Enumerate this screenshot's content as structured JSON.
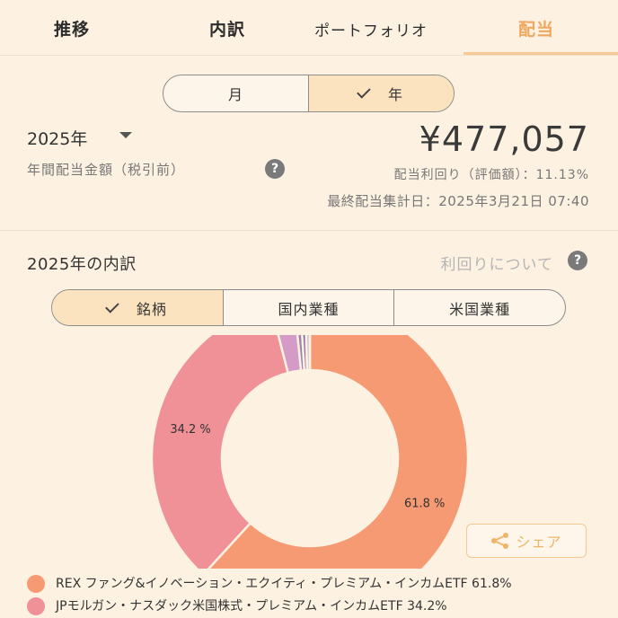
{
  "tabs": [
    {
      "label": "推移"
    },
    {
      "label": "内訳"
    },
    {
      "label": "ポートフォリオ"
    },
    {
      "label": "配当"
    }
  ],
  "period_toggle": {
    "month": "月",
    "year": "年",
    "selected": "year"
  },
  "year_select": "2025年",
  "annual_label": "年間配当金額（税引前）",
  "help_icon": "?",
  "amount": "¥477,057",
  "yield_text": "配当利回り（評価額）：11.13%",
  "last_updated": "最終配当集計日：2025年3月21日 07:40",
  "breakdown": {
    "title": "2025年の内訳",
    "about_link": "利回りについて",
    "categories": [
      {
        "label": "銘柄",
        "selected": true
      },
      {
        "label": "国内業種",
        "selected": false
      },
      {
        "label": "米国業種",
        "selected": false
      }
    ]
  },
  "share_label": "シェア",
  "colors": {
    "background": "#fdf1e1",
    "accent": "#f0a860",
    "slice1": "#f59a72",
    "slice2": "#ef9196",
    "slice3": "#d49bc7"
  },
  "chart_data": {
    "type": "pie",
    "style": "donut",
    "slices": [
      {
        "label": "REX ファング&イノベーション・エクイティ・プレミアム・インカムETF",
        "value": 61.8,
        "color": "#f59a72",
        "data_label": "61.8 %"
      },
      {
        "label": "JPモルガン・ナスダック米国株式・プレミアム・インカムETF",
        "value": 34.2,
        "color": "#ef9196",
        "data_label": "34.2 %"
      },
      {
        "label": "",
        "value": 2.4,
        "color": "#d49bc7",
        "data_label": ""
      },
      {
        "label": "",
        "value": 0.6,
        "color": "#a57fb0",
        "data_label": ""
      },
      {
        "label": "",
        "value": 0.5,
        "color": "#7c6f9e",
        "data_label": ""
      },
      {
        "label": "",
        "value": 0.5,
        "color": "#d9c2d8",
        "data_label": ""
      }
    ]
  },
  "legend": [
    {
      "text": "REX ファング&イノベーション・エクイティ・プレミアム・インカムETF 61.8%",
      "color": "#f59a72"
    },
    {
      "text": "JPモルガン・ナスダック米国株式・プレミアム・インカムETF 34.2%",
      "color": "#ef9196"
    }
  ]
}
